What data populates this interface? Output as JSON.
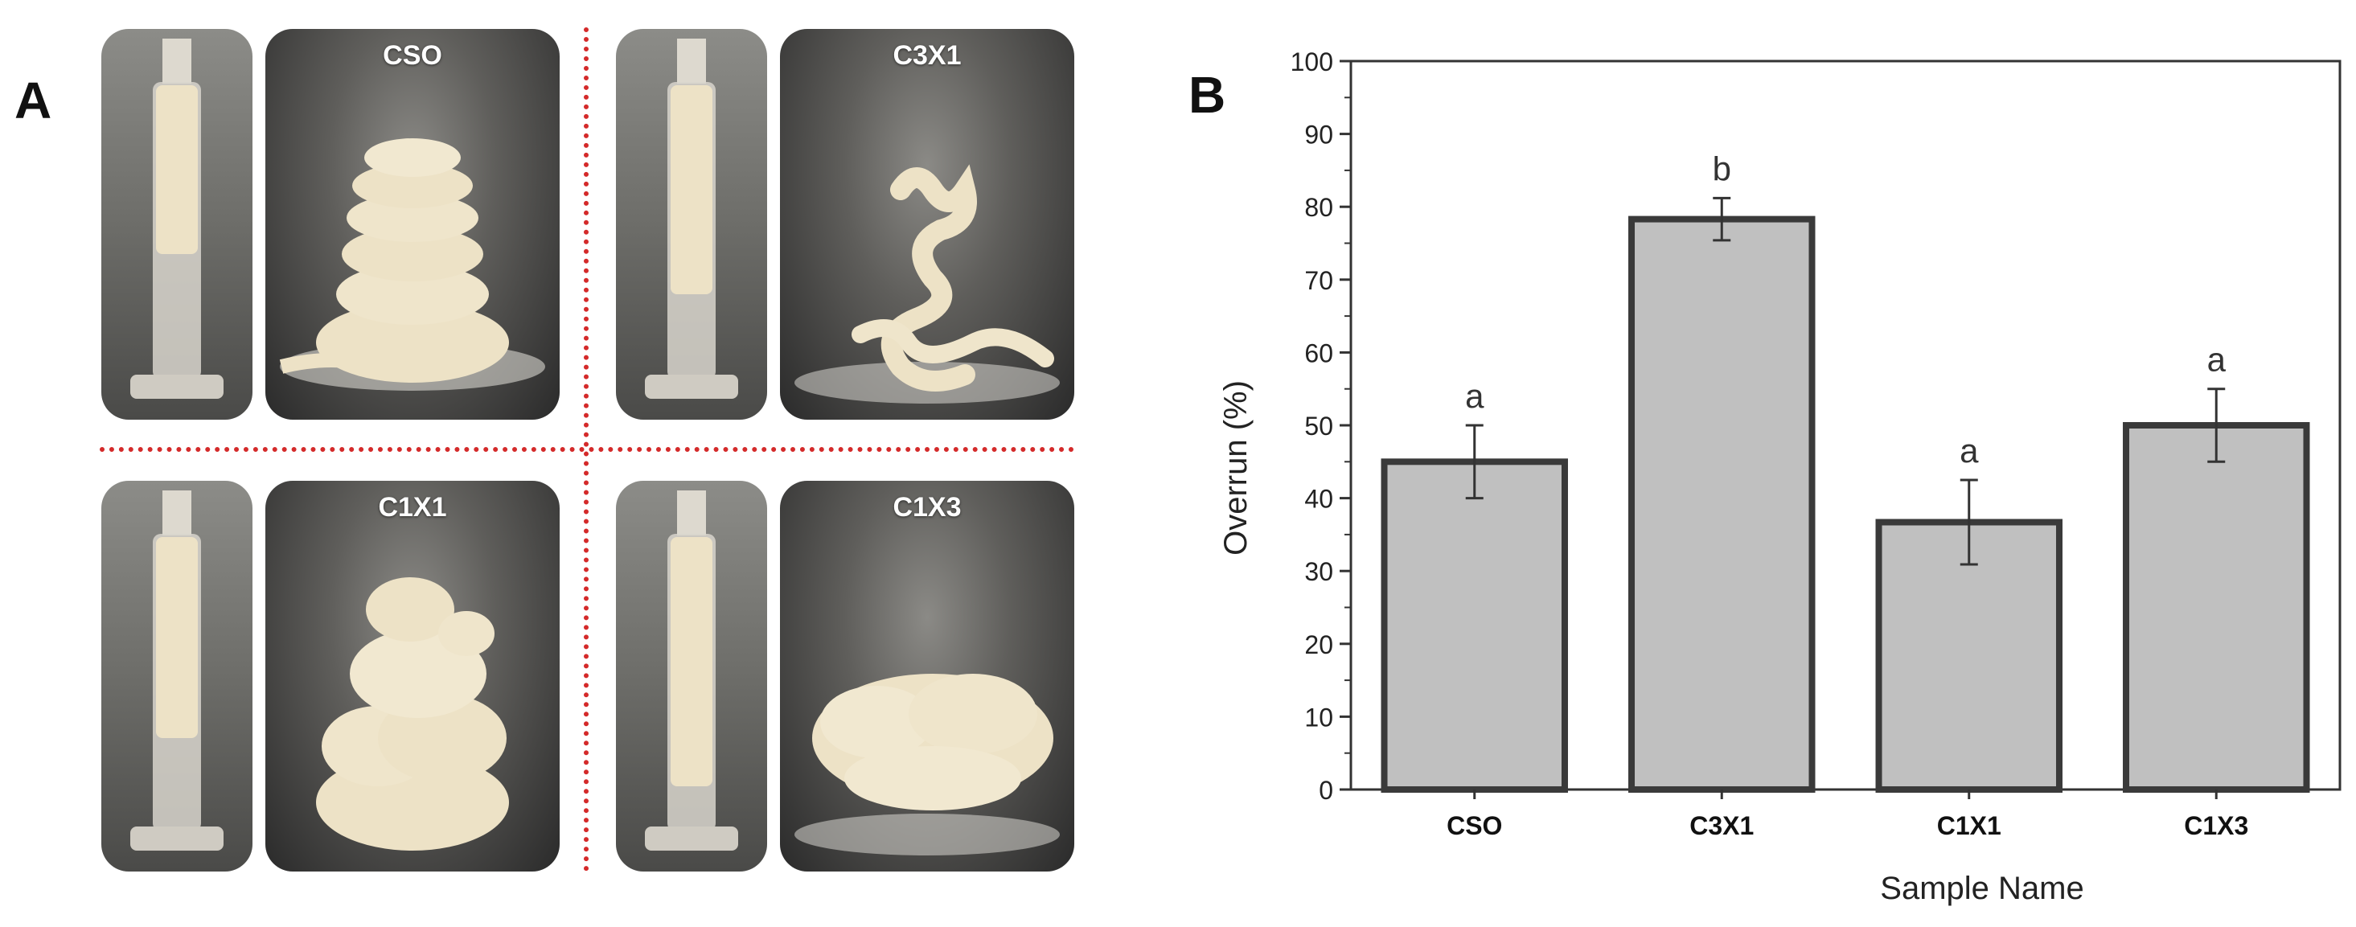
{
  "panel_a": {
    "label": "A",
    "photos": [
      {
        "name": "CSO"
      },
      {
        "name": "C3X1"
      },
      {
        "name": "C1X1"
      },
      {
        "name": "C1X3"
      }
    ]
  },
  "panel_b": {
    "label": "B"
  },
  "colors": {
    "bar_fill": "#c0c0c0",
    "bar_stroke": "#3a3a3a",
    "divider": "#d42a2a",
    "sample_cream": "#ede2c6"
  },
  "chart_data": {
    "type": "bar",
    "title": "",
    "xlabel": "Sample Name",
    "ylabel": "Overrun (%)",
    "ylim": [
      0,
      100
    ],
    "yticks": [
      "0",
      "10",
      "20",
      "30",
      "40",
      "50",
      "60",
      "70",
      "80",
      "90",
      "100"
    ],
    "categories": [
      "CSO",
      "C3X1",
      "C1X1",
      "C1X3"
    ],
    "values": [
      45.0,
      78.3,
      36.7,
      50.0
    ],
    "error": [
      5.0,
      2.9,
      5.8,
      5.0
    ],
    "significance": [
      "a",
      "b",
      "a",
      "a"
    ],
    "grid": false,
    "legend": "none"
  }
}
